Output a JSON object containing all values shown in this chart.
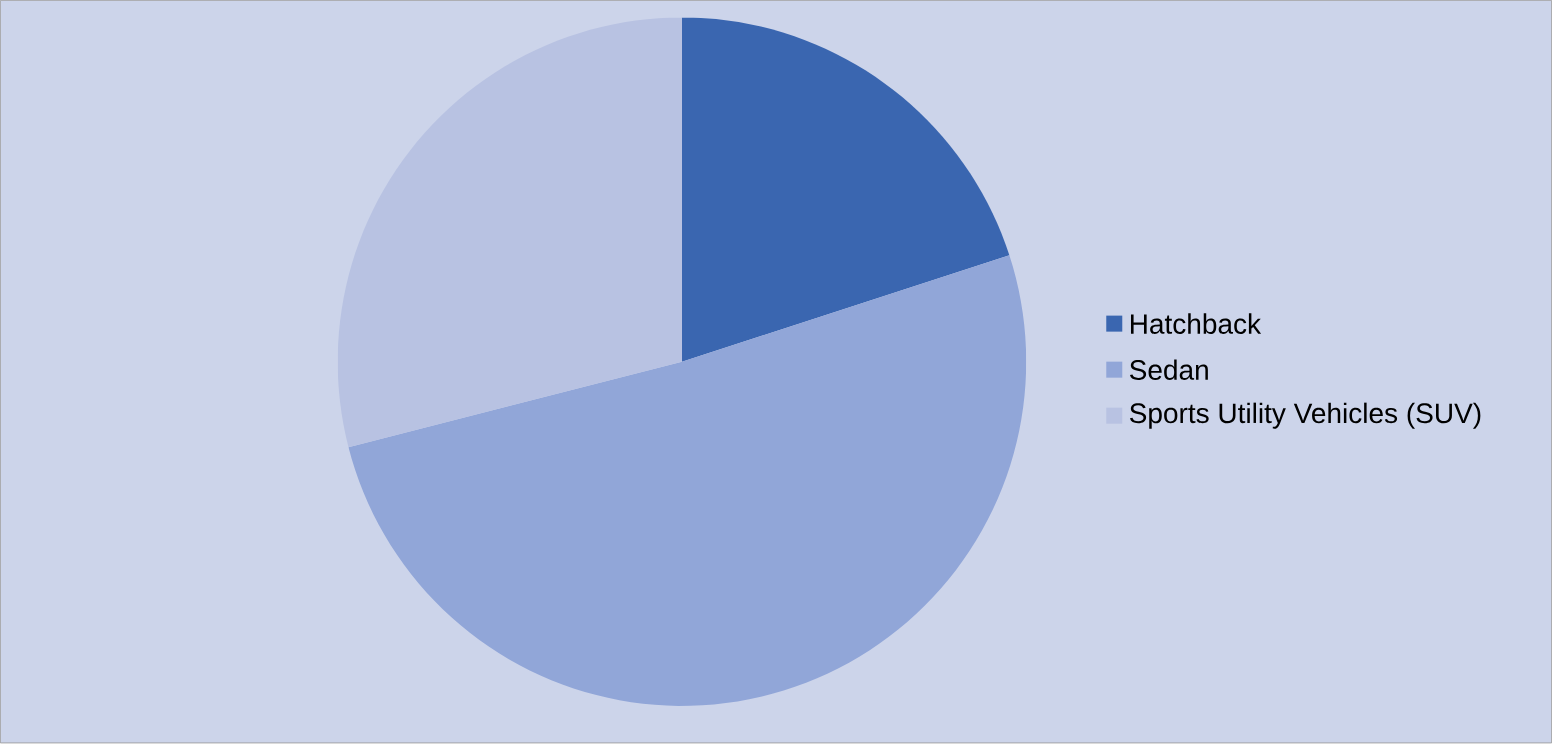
{
  "chart_data": {
    "type": "pie",
    "categories": [
      "Hatchback",
      "Sedan",
      "Sports Utility Vehicles (SUV)"
    ],
    "values": [
      20,
      51,
      29
    ],
    "colors": [
      "#3a66b0",
      "#91a6d8",
      "#b8c2e2"
    ],
    "legend": "right"
  }
}
